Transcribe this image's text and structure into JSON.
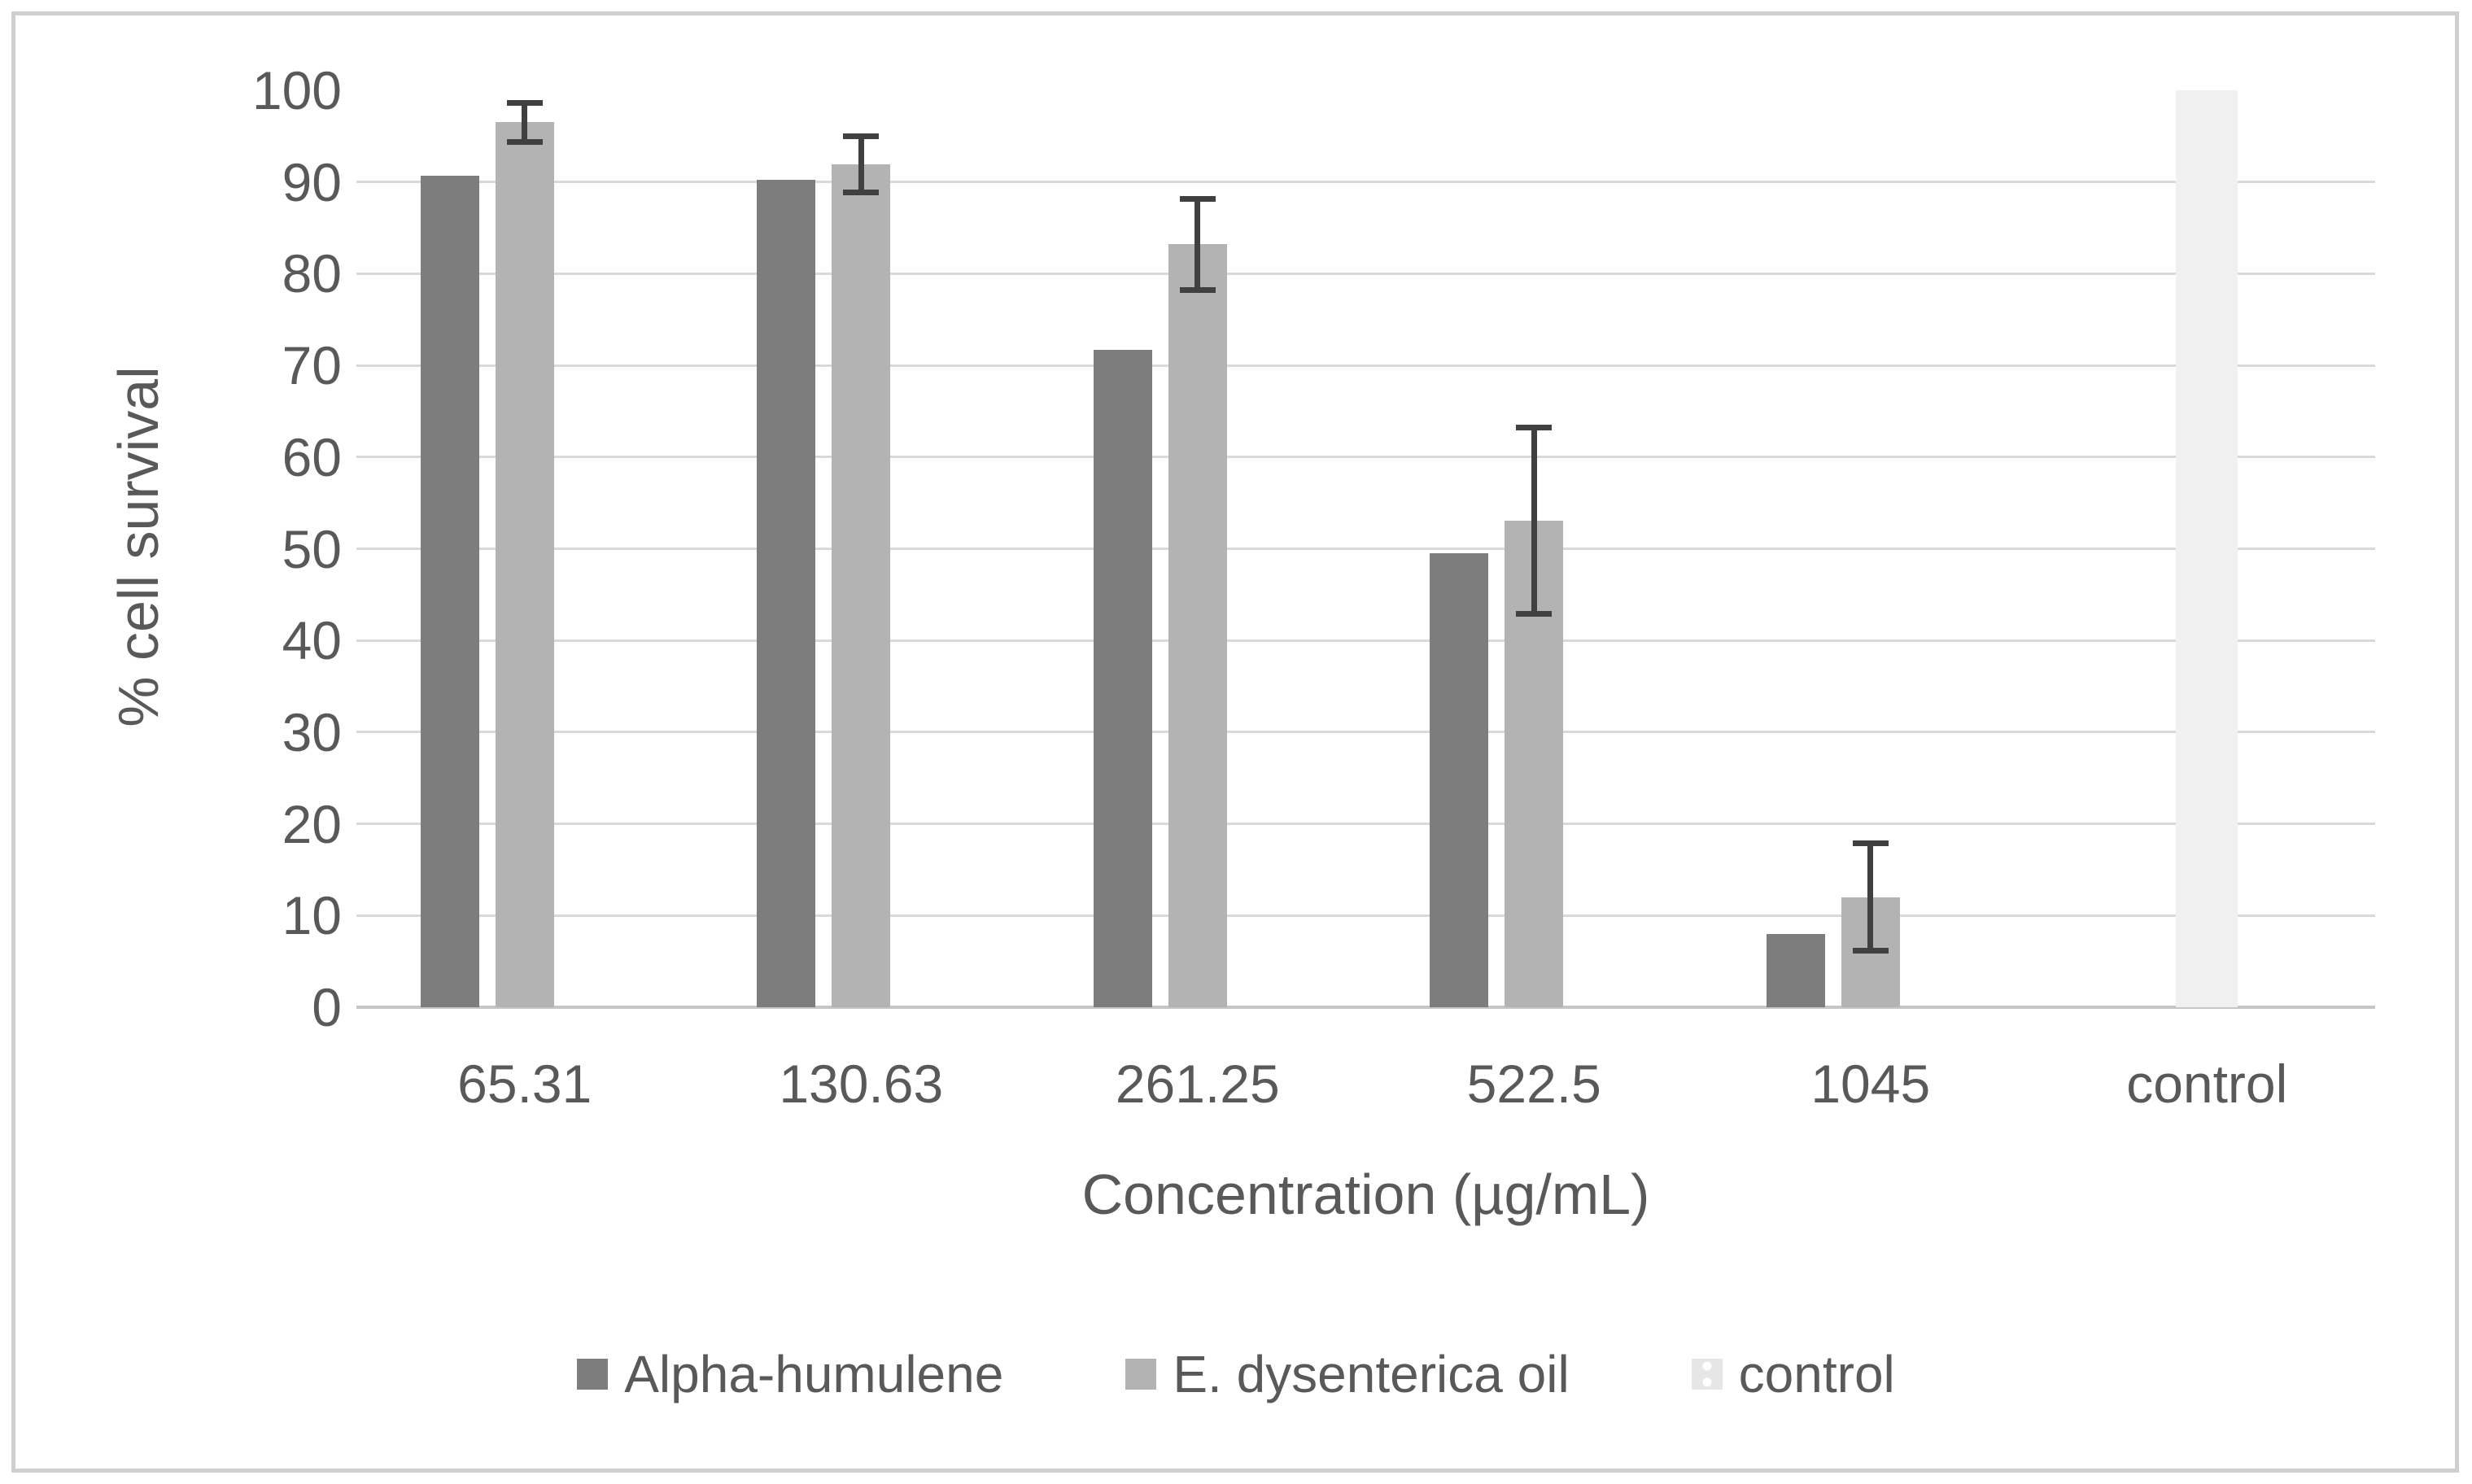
{
  "chart_data": {
    "type": "bar",
    "title": "",
    "ylabel": "% cell survival",
    "xlabel": "Concentration (µg/mL)",
    "ylim": [
      0,
      100
    ],
    "yticks": [
      0,
      10,
      20,
      30,
      40,
      50,
      60,
      70,
      80,
      90,
      100
    ],
    "grid": "horizontal-only, no gridline at 100",
    "legend_position": "bottom",
    "categories": [
      "65.31",
      "130.63",
      "261.25",
      "522.5",
      "1045",
      "control"
    ],
    "series": [
      {
        "name": "Alpha-humulene",
        "color": "#7d7d7d",
        "values": [
          90.7,
          90.2,
          71.7,
          49.5,
          8,
          null
        ],
        "error": [
          null,
          null,
          null,
          null,
          null,
          null
        ]
      },
      {
        "name": "E. dysenterica oil",
        "color": "#b3b3b3",
        "values": [
          96.5,
          91.9,
          83.2,
          53.1,
          12,
          null
        ],
        "error": [
          2.2,
          3.1,
          5.0,
          10.2,
          5.9,
          null
        ]
      },
      {
        "name": "control",
        "color": "#f0f0f0",
        "pattern": "dotted",
        "values": [
          null,
          null,
          null,
          null,
          null,
          100
        ],
        "error": [
          null,
          null,
          null,
          null,
          null,
          null
        ]
      }
    ]
  },
  "colors": {
    "grid": "#d9d9d9",
    "axis_line": "#c6c6c6",
    "text": "#595959",
    "error_bar": "#404040",
    "frame_border": "#cfcfcf",
    "background": "#ffffff",
    "legend_control_swatch": "#e6e6e6"
  }
}
